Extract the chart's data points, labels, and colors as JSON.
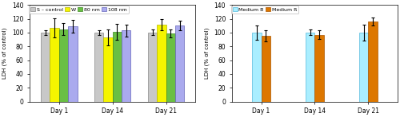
{
  "left_chart": {
    "groups": [
      "Day 1",
      "Day 14",
      "Day 21"
    ],
    "series_labels": [
      "S – control",
      "W",
      "80 nm",
      "108 nm"
    ],
    "bar_colors": [
      "#c8c8c8",
      "#f5f500",
      "#6abf44",
      "#aaaaee"
    ],
    "bar_edge_colors": [
      "#888888",
      "#b8b800",
      "#3a8a20",
      "#6666bb"
    ],
    "values": [
      [
        100,
        100,
        100
      ],
      [
        107,
        93,
        111
      ],
      [
        105,
        101,
        99
      ],
      [
        109,
        103,
        110
      ]
    ],
    "errors": [
      [
        3,
        3,
        4
      ],
      [
        14,
        12,
        8
      ],
      [
        9,
        12,
        6
      ],
      [
        9,
        9,
        7
      ]
    ],
    "ylabel": "LDH (% of control)",
    "ylim": [
      0,
      140
    ],
    "yticks": [
      0,
      20,
      40,
      60,
      80,
      100,
      120,
      140
    ]
  },
  "right_chart": {
    "groups": [
      "Day 1",
      "Day 14",
      "Day 21"
    ],
    "series_labels": [
      "Medium B",
      "Medium R"
    ],
    "bar_colors": [
      "#aaeeff",
      "#dd7700"
    ],
    "bar_edge_colors": [
      "#55bbdd",
      "#aa5500"
    ],
    "values": [
      [
        100,
        100,
        100
      ],
      [
        95,
        97,
        116
      ]
    ],
    "errors": [
      [
        10,
        4,
        12
      ],
      [
        8,
        6,
        6
      ]
    ],
    "ylabel": "LDH (% of control)",
    "ylim": [
      0,
      140
    ],
    "yticks": [
      0,
      20,
      40,
      60,
      80,
      100,
      120,
      140
    ]
  }
}
